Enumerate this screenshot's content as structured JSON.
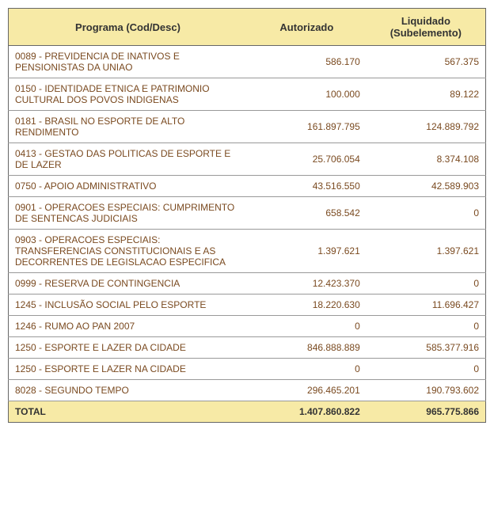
{
  "header_bg": "#f7eaa6",
  "header_text_color": "#333333",
  "header_fontsize": "13px",
  "body_bg": "#ffffff",
  "body_text_color": "#7a4a20",
  "body_fontsize": "12px",
  "total_bg": "#f7eaa6",
  "total_text_color": "#333333",
  "border_color": "#666666",
  "row_border_color": "#999999",
  "columns": [
    {
      "key": "programa",
      "label": "Programa (Cod/Desc)",
      "align": "left"
    },
    {
      "key": "autorizado",
      "label": "Autorizado",
      "align": "right"
    },
    {
      "key": "liquidado",
      "label": "Liquidado (Subelemento)",
      "align": "right"
    }
  ],
  "rows": [
    {
      "programa": "0089 - PREVIDENCIA DE INATIVOS E PENSIONISTAS DA UNIAO",
      "autorizado": "586.170",
      "liquidado": "567.375"
    },
    {
      "programa": "0150 - IDENTIDADE ETNICA E PATRIMONIO CULTURAL DOS POVOS INDIGENAS",
      "autorizado": "100.000",
      "liquidado": "89.122"
    },
    {
      "programa": "0181 - BRASIL NO ESPORTE DE ALTO RENDIMENTO",
      "autorizado": "161.897.795",
      "liquidado": "124.889.792"
    },
    {
      "programa": "0413 - GESTAO DAS POLITICAS DE ESPORTE E DE LAZER",
      "autorizado": "25.706.054",
      "liquidado": "8.374.108"
    },
    {
      "programa": "0750 - APOIO ADMINISTRATIVO",
      "autorizado": "43.516.550",
      "liquidado": "42.589.903"
    },
    {
      "programa": "0901 - OPERACOES ESPECIAIS: CUMPRIMENTO DE SENTENCAS JUDICIAIS",
      "autorizado": "658.542",
      "liquidado": "0"
    },
    {
      "programa": "0903 - OPERACOES ESPECIAIS: TRANSFERENCIAS CONSTITUCIONAIS E AS DECORRENTES DE LEGISLACAO ESPECIFICA",
      "autorizado": "1.397.621",
      "liquidado": "1.397.621"
    },
    {
      "programa": "0999 - RESERVA DE CONTINGENCIA",
      "autorizado": "12.423.370",
      "liquidado": "0"
    },
    {
      "programa": "1245 - INCLUSÃO SOCIAL PELO ESPORTE",
      "autorizado": "18.220.630",
      "liquidado": "11.696.427"
    },
    {
      "programa": "1246 - RUMO AO PAN 2007",
      "autorizado": "0",
      "liquidado": "0"
    },
    {
      "programa": "1250 - ESPORTE E LAZER DA CIDADE",
      "autorizado": "846.888.889",
      "liquidado": "585.377.916"
    },
    {
      "programa": "1250 - ESPORTE E LAZER NA CIDADE",
      "autorizado": "0",
      "liquidado": "0"
    },
    {
      "programa": "8028 - SEGUNDO TEMPO",
      "autorizado": "296.465.201",
      "liquidado": "190.793.602"
    }
  ],
  "total": {
    "label": "TOTAL",
    "autorizado": "1.407.860.822",
    "liquidado": "965.775.866"
  }
}
